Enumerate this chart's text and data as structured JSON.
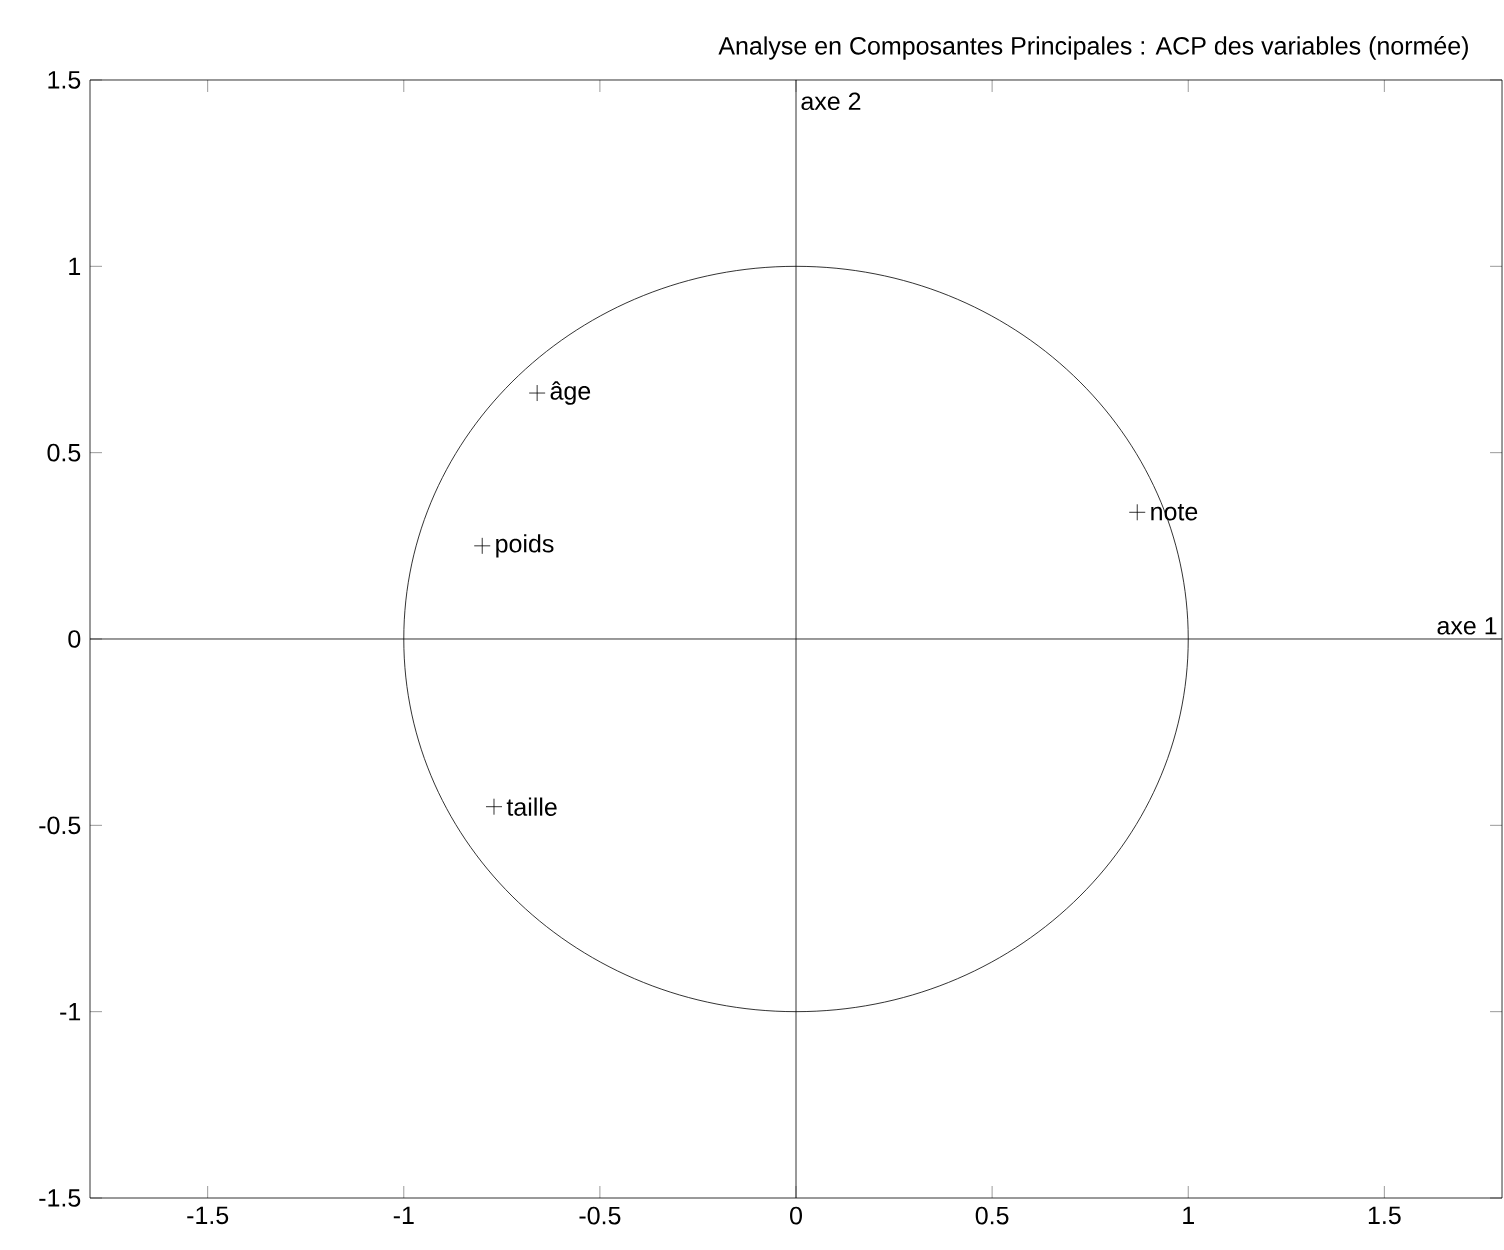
{
  "chart_data": {
    "type": "scatter",
    "title": "Analyse en Composantes Principales : ACP des variables (normée)",
    "xlim": [
      -1.8,
      1.8
    ],
    "ylim": [
      -1.5,
      1.5
    ],
    "xticks": [
      -1.5,
      -1,
      -0.5,
      0,
      0.5,
      1,
      1.5
    ],
    "yticks": [
      -1.5,
      -1,
      -0.5,
      0,
      0.5,
      1,
      1.5
    ],
    "grid": false,
    "series": [
      {
        "marker": "cross",
        "color": "#000000",
        "x": [
          -0.66,
          -0.8,
          -0.77,
          0.87
        ],
        "values": [
          0.66,
          0.25,
          -0.45,
          0.34
        ]
      }
    ],
    "annotations": [
      {
        "text": "âge",
        "x": -0.66,
        "y": 0.66
      },
      {
        "text": "poids",
        "x": -0.8,
        "y": 0.25
      },
      {
        "text": "taille",
        "x": -0.77,
        "y": -0.45
      },
      {
        "text": "note",
        "x": 0.87,
        "y": 0.34
      }
    ],
    "ref_lines": [
      {
        "axis": "y",
        "value": 0,
        "label": "axe 1",
        "color": "#000000"
      },
      {
        "axis": "x",
        "value": 0,
        "label": "axe 2",
        "color": "#000000"
      }
    ]
  }
}
